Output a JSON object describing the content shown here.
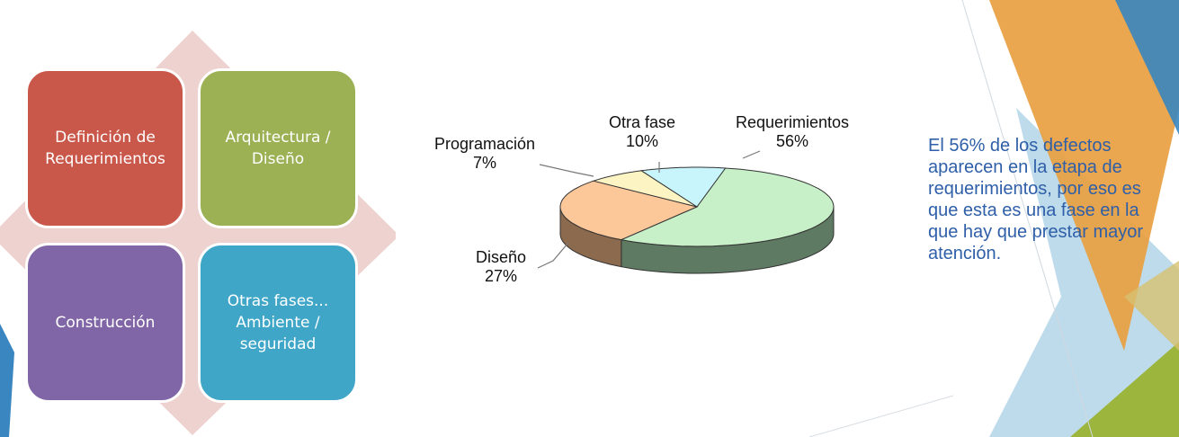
{
  "matrix": {
    "items": [
      {
        "label": "Definición de\nRequerimientos",
        "color": "#c9574a"
      },
      {
        "label": "Arquitectura /\nDiseño",
        "color": "#9bb154"
      },
      {
        "label": "Construcción",
        "color": "#8066a6"
      },
      {
        "label": "Otras fases...\nAmbiente /\nseguridad",
        "color": "#3fa6c8"
      }
    ],
    "diamond_color": "#edd2cf"
  },
  "chart_data": {
    "type": "pie",
    "title": "",
    "slices": [
      {
        "name": "Requerimientos",
        "value": 56,
        "label": "56%",
        "color": "#c8f0c8",
        "side_color": "#5e7a62"
      },
      {
        "name": "Diseño",
        "value": 27,
        "label": "27%",
        "color": "#fcc89a",
        "side_color": "#8c6a4e"
      },
      {
        "name": "Programación",
        "value": 7,
        "label": "7%",
        "color": "#fdf4c4",
        "side_color": "#9c9874"
      },
      {
        "name": "Otra fase",
        "value": 10,
        "label": "10%",
        "color": "#c8f4fc",
        "side_color": "#6a8c94"
      }
    ]
  },
  "note": {
    "text": "El 56% de los defectos aparecen en la etapa de requerimientos, por eso es que esta es una fase en la que hay que prestar mayor atención."
  },
  "theme": {
    "orange": "#e8a040",
    "blue": "#3a86c0",
    "lightblue": "#a8cfe6",
    "green": "#9cb53c",
    "text_blue": "#2e5fa8"
  }
}
